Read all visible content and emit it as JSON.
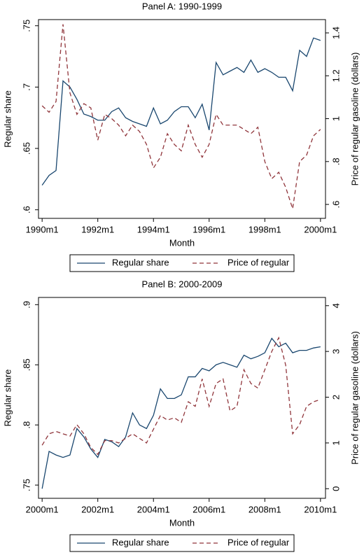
{
  "chart_data": [
    {
      "type": "line",
      "title": "Panel A: 1990-1999",
      "x_label": "Month",
      "y_label": "Regular share",
      "y2_label": "Price of regular gasoline (dollars)",
      "x": [
        1990.0,
        1990.25,
        1990.5,
        1990.75,
        1991.0,
        1991.25,
        1991.5,
        1991.75,
        1992.0,
        1992.25,
        1992.5,
        1992.75,
        1993.0,
        1993.25,
        1993.5,
        1993.75,
        1994.0,
        1994.25,
        1994.5,
        1994.75,
        1995.0,
        1995.25,
        1995.5,
        1995.75,
        1996.0,
        1996.25,
        1996.5,
        1996.75,
        1997.0,
        1997.25,
        1997.5,
        1997.75,
        1998.0,
        1998.25,
        1998.5,
        1998.75,
        1999.0,
        1999.25,
        1999.5,
        1999.75,
        2000.0
      ],
      "xlim": [
        1989.87,
        2000.18
      ],
      "xticks": [
        {
          "value": 1990,
          "label": "1990m1"
        },
        {
          "value": 1992,
          "label": "1992m1"
        },
        {
          "value": 1994,
          "label": "1994m1"
        },
        {
          "value": 1996,
          "label": "1996m1"
        },
        {
          "value": 1998,
          "label": "1998m1"
        },
        {
          "value": 2000,
          "label": "2000m1"
        }
      ],
      "ylim": [
        0.593,
        0.755
      ],
      "yticks": [
        {
          "value": 0.6,
          "label": ".6"
        },
        {
          "value": 0.65,
          "label": ".65"
        },
        {
          "value": 0.7,
          "label": ".7"
        },
        {
          "value": 0.75,
          "label": ".75"
        }
      ],
      "y2lim": [
        0.535,
        1.462
      ],
      "y2ticks": [
        {
          "value": 0.6,
          "label": ".6"
        },
        {
          "value": 0.8,
          "label": ".8"
        },
        1,
        1.2,
        1.4
      ],
      "legend": "bottom",
      "series": [
        {
          "name": "Regular share",
          "color": "#1a476f",
          "line_style": "solid",
          "values": [
            0.62,
            0.628,
            0.632,
            0.705,
            0.7,
            0.69,
            0.678,
            0.676,
            0.673,
            0.673,
            0.68,
            0.683,
            0.675,
            0.672,
            0.67,
            0.668,
            0.683,
            0.67,
            0.673,
            0.68,
            0.684,
            0.684,
            0.675,
            0.686,
            0.665,
            0.72,
            0.71,
            0.713,
            0.716,
            0.712,
            0.722,
            0.712,
            0.715,
            0.712,
            0.708,
            0.708,
            0.697,
            0.73,
            0.725,
            0.74,
            0.738
          ]
        },
        {
          "name": "Price of regular",
          "color": "#90353b",
          "line_style": "dashed",
          "axis": "y2",
          "values": [
            1.06,
            1.03,
            1.08,
            1.44,
            1.12,
            1.02,
            1.07,
            1.05,
            0.9,
            1.02,
            1.0,
            0.97,
            0.92,
            0.97,
            0.94,
            0.88,
            0.77,
            0.82,
            0.93,
            0.88,
            0.85,
            0.97,
            0.88,
            0.82,
            0.88,
            1.02,
            0.97,
            0.97,
            0.97,
            0.95,
            0.93,
            0.96,
            0.8,
            0.72,
            0.75,
            0.68,
            0.58,
            0.8,
            0.83,
            0.92,
            0.95
          ]
        }
      ]
    },
    {
      "type": "line",
      "title": "Panel B: 2000-2009",
      "x_label": "Month",
      "y_label": "Regular share",
      "y2_label": "Price of regular gasoline (dollars)",
      "x": [
        2000.0,
        2000.25,
        2000.5,
        2000.75,
        2001.0,
        2001.25,
        2001.5,
        2001.75,
        2002.0,
        2002.25,
        2002.5,
        2002.75,
        2003.0,
        2003.25,
        2003.5,
        2003.75,
        2004.0,
        2004.25,
        2004.5,
        2004.75,
        2005.0,
        2005.25,
        2005.5,
        2005.75,
        2006.0,
        2006.25,
        2006.5,
        2006.75,
        2007.0,
        2007.25,
        2007.5,
        2007.75,
        2008.0,
        2008.25,
        2008.5,
        2008.75,
        2009.0,
        2009.25,
        2009.5,
        2009.75,
        2010.0
      ],
      "xlim": [
        1999.87,
        2010.18
      ],
      "xticks": [
        {
          "value": 2000,
          "label": "2000m1"
        },
        {
          "value": 2002,
          "label": "2002m1"
        },
        {
          "value": 2004,
          "label": "2004m1"
        },
        {
          "value": 2006,
          "label": "2006m1"
        },
        {
          "value": 2008,
          "label": "2008m1"
        },
        {
          "value": 2010,
          "label": "2010m1"
        }
      ],
      "ylim": [
        0.739,
        0.906
      ],
      "yticks": [
        {
          "value": 0.75,
          "label": ".75"
        },
        {
          "value": 0.8,
          "label": ".8"
        },
        {
          "value": 0.85,
          "label": ".85"
        },
        {
          "value": 0.9,
          "label": ".9"
        }
      ],
      "y2lim": [
        -0.21,
        4.18
      ],
      "y2ticks": [
        0,
        1,
        2,
        3,
        4
      ],
      "legend": "bottom",
      "series": [
        {
          "name": "Regular share",
          "color": "#1a476f",
          "line_style": "solid",
          "values": [
            0.747,
            0.778,
            0.775,
            0.773,
            0.775,
            0.797,
            0.79,
            0.78,
            0.773,
            0.788,
            0.786,
            0.782,
            0.79,
            0.81,
            0.8,
            0.797,
            0.808,
            0.83,
            0.822,
            0.822,
            0.825,
            0.84,
            0.84,
            0.847,
            0.845,
            0.85,
            0.852,
            0.85,
            0.848,
            0.858,
            0.855,
            0.857,
            0.86,
            0.872,
            0.865,
            0.868,
            0.86,
            0.862,
            0.862,
            0.864,
            0.865
          ]
        },
        {
          "name": "Price of regular",
          "color": "#90353b",
          "line_style": "dashed",
          "axis": "y2",
          "values": [
            0.95,
            1.2,
            1.25,
            1.2,
            1.15,
            1.4,
            1.2,
            0.9,
            0.75,
            1.05,
            1.05,
            1.0,
            1.1,
            1.2,
            1.1,
            1.0,
            1.3,
            1.6,
            1.5,
            1.55,
            1.45,
            1.9,
            1.8,
            2.4,
            1.8,
            2.3,
            2.4,
            1.7,
            1.8,
            2.6,
            2.3,
            2.2,
            2.6,
            3.0,
            3.3,
            2.7,
            1.2,
            1.4,
            1.8,
            1.9,
            1.95
          ]
        }
      ]
    }
  ]
}
